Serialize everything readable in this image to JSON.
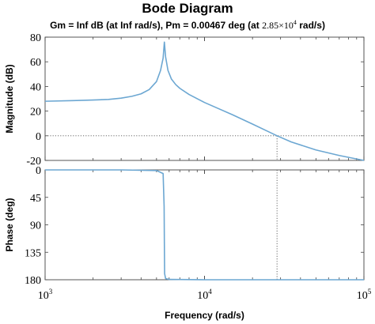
{
  "chart_data": {
    "type": "line",
    "title": "Bode Diagram",
    "subtitle": {
      "prefix": "Gm = Inf dB (at Inf rad/s), Pm = 0.00467 deg (at  ",
      "freq_mantissa": "2.85",
      "freq_exponent": "4",
      "suffix": " rad/s)"
    },
    "xlabel": "Frequency (rad/s)",
    "xscale": "log",
    "xlim": [
      1000,
      100000
    ],
    "x_ticks": [
      {
        "value": 1000,
        "base": "10",
        "exp": "3"
      },
      {
        "value": 10000,
        "base": "10",
        "exp": "4"
      },
      {
        "value": 100000,
        "base": "10",
        "exp": "5"
      }
    ],
    "crossover_frequency": 28500,
    "resonance_frequency": 5600,
    "panels": [
      {
        "name": "magnitude",
        "ylabel": "Magnitude (dB)",
        "ylim": [
          -20,
          80
        ],
        "y_ticks": [
          80,
          60,
          40,
          20,
          0,
          -20
        ],
        "reference_line_y": 0,
        "series": {
          "color": "#6ca7d2",
          "x": [
            1000,
            1500,
            2000,
            2500,
            3000,
            3500,
            4000,
            4500,
            5000,
            5300,
            5500,
            5600,
            5700,
            5900,
            6200,
            6600,
            7000,
            8000,
            10000,
            12000,
            15000,
            20000,
            25000,
            28500,
            35000,
            50000,
            70000,
            100000
          ],
          "y": [
            28,
            28.5,
            29,
            29.5,
            30.5,
            32,
            34,
            37.5,
            44,
            53,
            63,
            76,
            64,
            53,
            46,
            41.5,
            38.5,
            33.5,
            27,
            22.5,
            17,
            9.5,
            3.5,
            0,
            -5,
            -11.5,
            -16,
            -20
          ]
        }
      },
      {
        "name": "phase",
        "ylabel": "Phase (deg)",
        "ylim": [
          -180,
          0
        ],
        "y_ticks": [
          {
            "value": 0,
            "label": "0"
          },
          {
            "value": -45,
            "label": "45"
          },
          {
            "value": -90,
            "label": "90"
          },
          {
            "value": -135,
            "label": "135"
          },
          {
            "value": -180,
            "label": "180"
          }
        ],
        "reference_line_y": -180,
        "series": {
          "color": "#6ca7d2",
          "x": [
            1000,
            3000,
            5000,
            5500,
            5580,
            5600,
            5620,
            5700,
            6000,
            10000,
            100000
          ],
          "y": [
            0,
            0,
            -1,
            -6,
            -60,
            -120,
            -170,
            -178,
            -179.5,
            -180,
            -180
          ]
        }
      }
    ]
  }
}
